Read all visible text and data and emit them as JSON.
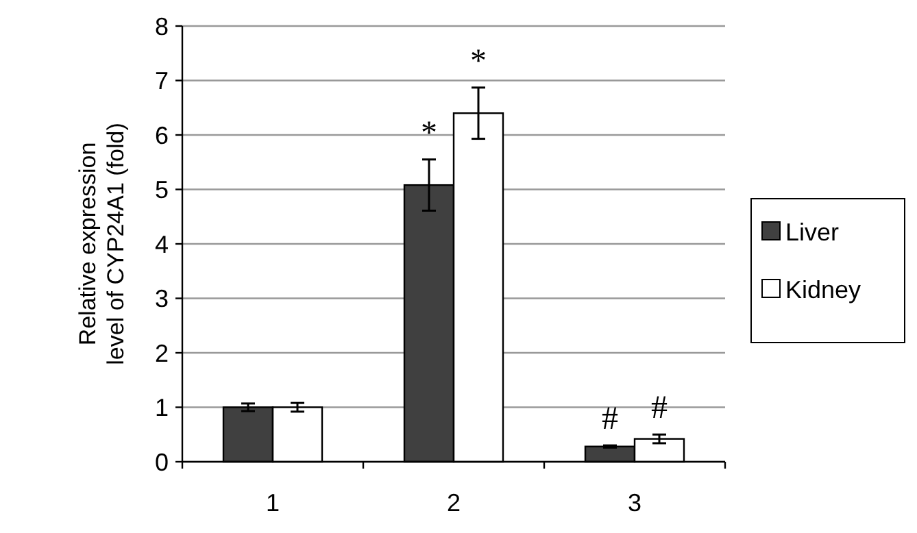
{
  "chart_data": {
    "type": "bar",
    "ylabel": "Relative expression level of CYP24A1 (fold)",
    "categories": [
      "1",
      "2",
      "3"
    ],
    "series": [
      {
        "name": "Liver",
        "color": "#404040",
        "values": [
          1.0,
          5.08,
          0.28
        ],
        "errors": [
          0.07,
          0.47,
          0.02
        ]
      },
      {
        "name": "Kidney",
        "color": "#ffffff",
        "values": [
          1.0,
          6.4,
          0.42
        ],
        "errors": [
          0.08,
          0.47,
          0.08
        ]
      }
    ],
    "ylim": [
      0,
      8
    ],
    "yticks": [
      0,
      1,
      2,
      3,
      4,
      5,
      6,
      7,
      8
    ],
    "grid": "y",
    "legend": "right",
    "annotations": [
      {
        "text": "*",
        "x": "2",
        "y": 5.08
      },
      {
        "text": "*",
        "x": "2",
        "y": 6.4
      },
      {
        "text": "#",
        "x": "3",
        "y": 0.28
      },
      {
        "text": "#",
        "x": "3",
        "y": 0.42
      }
    ]
  }
}
